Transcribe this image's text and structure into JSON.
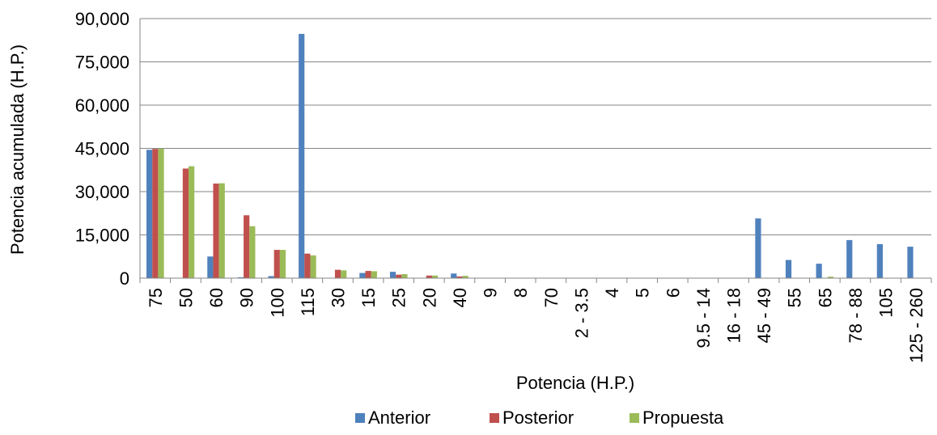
{
  "chart_data": {
    "type": "bar",
    "title": "",
    "xlabel": "Potencia (H.P.)",
    "ylabel": "Potencia acumulada (H.P.)",
    "ylim": [
      0,
      90000
    ],
    "yticks": [
      0,
      15000,
      30000,
      45000,
      60000,
      75000,
      90000
    ],
    "ytick_labels": [
      "0",
      "15,000",
      "30,000",
      "45,000",
      "60,000",
      "75,000",
      "90,000"
    ],
    "grid": true,
    "legend_position": "bottom",
    "categories": [
      "75",
      "50",
      "60",
      "90",
      "100",
      "115",
      "30",
      "15",
      "25",
      "20",
      "40",
      "9",
      "8",
      "70",
      "2 - 3.5",
      "4",
      "5",
      "6",
      "9.5 - 14",
      "16 - 18",
      "45 - 49",
      "55",
      "65",
      "78 - 88",
      "105",
      "125 - 260"
    ],
    "series": [
      {
        "name": "Anterior",
        "color": "#4f81bd",
        "values": [
          44500,
          0,
          7500,
          300,
          700,
          84700,
          0,
          1800,
          2200,
          0,
          1600,
          0,
          0,
          0,
          0,
          0,
          0,
          0,
          0,
          0,
          20700,
          6300,
          5000,
          13200,
          11800,
          10900
        ]
      },
      {
        "name": "Posterior",
        "color": "#c0504d",
        "values": [
          44800,
          38000,
          32800,
          21800,
          9800,
          8500,
          2900,
          2500,
          1200,
          900,
          600,
          0,
          0,
          0,
          0,
          0,
          0,
          0,
          0,
          0,
          0,
          0,
          0,
          0,
          0,
          0
        ]
      },
      {
        "name": "Propuesta",
        "color": "#9bbb59",
        "values": [
          44900,
          38800,
          32900,
          18000,
          9800,
          7900,
          2700,
          2400,
          1400,
          900,
          800,
          0,
          0,
          0,
          0,
          0,
          0,
          0,
          0,
          0,
          0,
          0,
          500,
          0,
          0,
          0
        ]
      }
    ]
  }
}
